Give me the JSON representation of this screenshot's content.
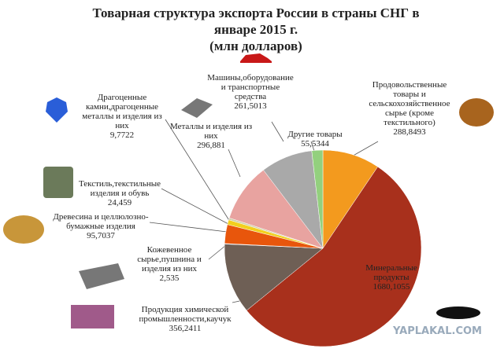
{
  "chart_data": {
    "type": "pie",
    "title": "Товарная структура экспорта России в страны СНГ в январе 2015 г.",
    "subtitle": "(млн долларов)",
    "categories": [
      "Продовольственные товары и сельскохозяйственное сырье (кроме текстильного)",
      "Минеральные продукты",
      "Продукция химической промышленности,каучук",
      "Кожевенное сырье,пушнина и изделия из них",
      "Древесина и целлюлозно-бумажные изделия",
      "Текстиль,текстильные изделия и обувь",
      "Драгоценные камни,драгоценные металлы и изделия из них",
      "Металлы и изделия из них",
      "Машины,оборудование и транспортные средства",
      "Другие товары"
    ],
    "values": [
      288.8493,
      1680.1055,
      356.2411,
      2.535,
      95.7037,
      24.459,
      9.7722,
      296.881,
      261.5013,
      55.5344
    ],
    "value_labels": [
      "288,8493",
      "1680,1055",
      "356,2411",
      "2,535",
      "95,7037",
      "24,459",
      "9,7722",
      "296,881",
      "261,5013",
      "55,5344"
    ],
    "colors": [
      "#f39a1e",
      "#a8301c",
      "#6e5f55",
      "#8a8fb0",
      "#e8560c",
      "#f2d01e",
      "#cfd0a8",
      "#e8a3a0",
      "#a9a9a9",
      "#93d07e"
    ],
    "watermark": "YAPLAKAL.COM"
  }
}
